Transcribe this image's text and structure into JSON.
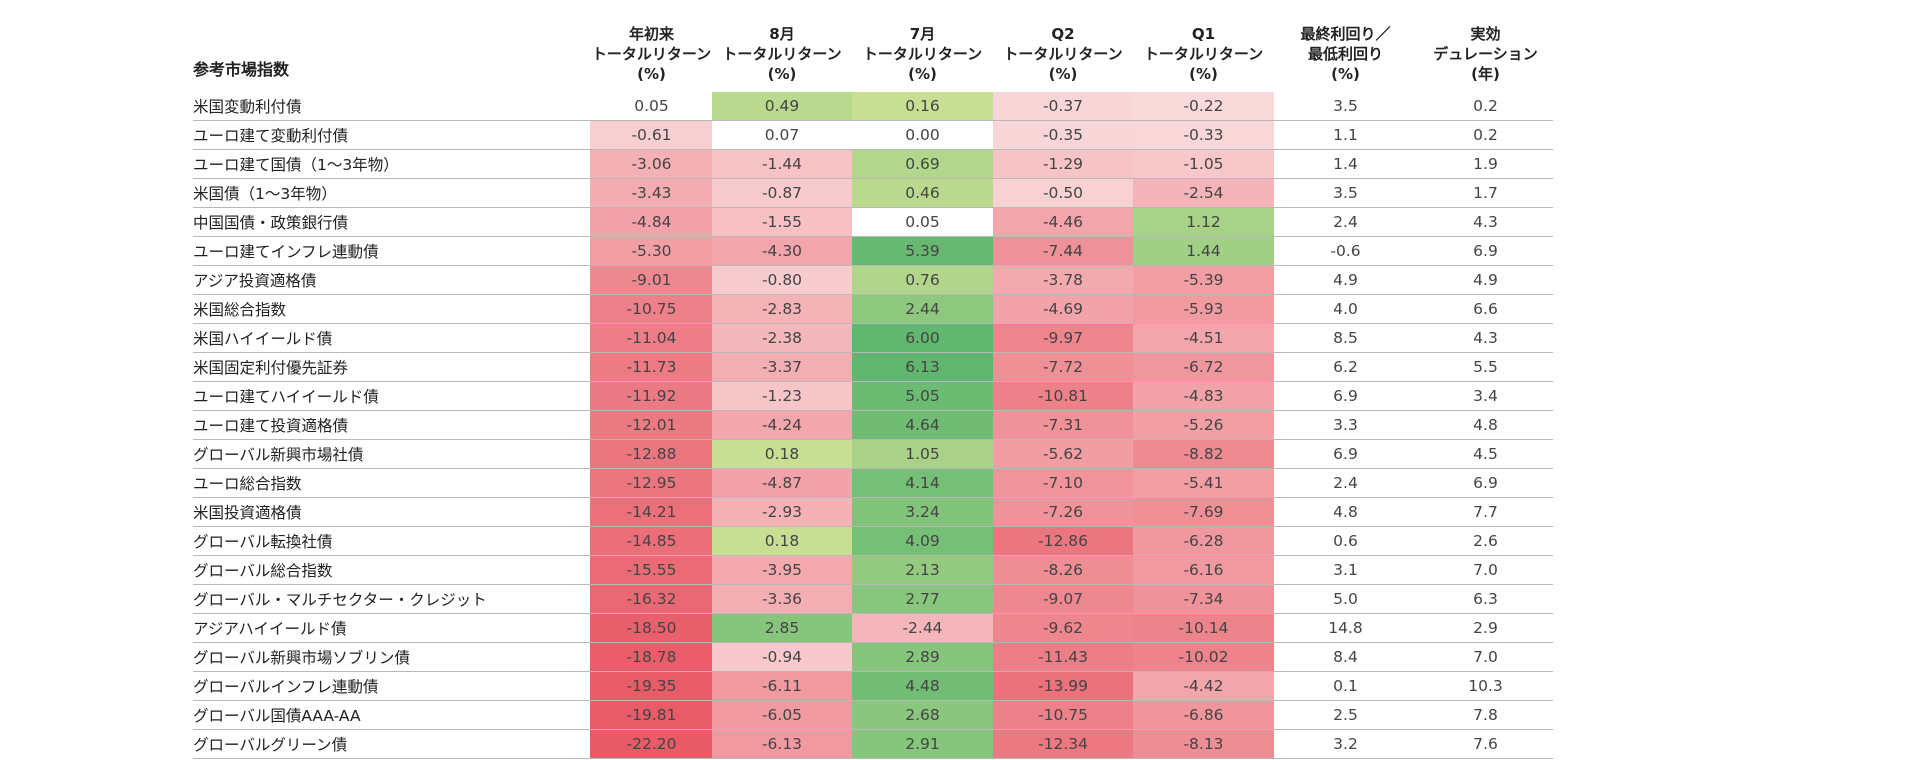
{
  "table": {
    "header": {
      "index_label": "参考市場指数",
      "columns": [
        [
          "年初来",
          "トータルリターン",
          "(%)"
        ],
        [
          "8月",
          "トータルリターン",
          "(%)"
        ],
        [
          "7月",
          "トータルリターン",
          "(%)"
        ],
        [
          "Q2",
          "トータルリターン",
          "(%)"
        ],
        [
          "Q1",
          "トータルリターン",
          "(%)"
        ],
        [
          "最終利回り／",
          "最低利回り",
          "(%)"
        ],
        [
          "実効",
          "デュレーション",
          "(年)"
        ]
      ]
    },
    "rows": [
      {
        "name": "米国変動利付債",
        "values": [
          "0.05",
          "0.49",
          "0.16",
          "-0.37",
          "-0.22",
          "3.5",
          "0.2"
        ]
      },
      {
        "name": "ユーロ建て変動利付債",
        "values": [
          "-0.61",
          "0.07",
          "0.00",
          "-0.35",
          "-0.33",
          "1.1",
          "0.2"
        ]
      },
      {
        "name": "ユーロ建て国債（1～3年物）",
        "values": [
          "-3.06",
          "-1.44",
          "0.69",
          "-1.29",
          "-1.05",
          "1.4",
          "1.9"
        ]
      },
      {
        "name": "米国債（1～3年物）",
        "values": [
          "-3.43",
          "-0.87",
          "0.46",
          "-0.50",
          "-2.54",
          "3.5",
          "1.7"
        ]
      },
      {
        "name": "中国国債・政策銀行債",
        "values": [
          "-4.84",
          "-1.55",
          "0.05",
          "-4.46",
          "1.12",
          "2.4",
          "4.3"
        ]
      },
      {
        "name": "ユーロ建てインフレ連動債",
        "values": [
          "-5.30",
          "-4.30",
          "5.39",
          "-7.44",
          "1.44",
          "-0.6",
          "6.9"
        ]
      },
      {
        "name": "アジア投資適格債",
        "values": [
          "-9.01",
          "-0.80",
          "0.76",
          "-3.78",
          "-5.39",
          "4.9",
          "4.9"
        ]
      },
      {
        "name": "米国総合指数",
        "values": [
          "-10.75",
          "-2.83",
          "2.44",
          "-4.69",
          "-5.93",
          "4.0",
          "6.6"
        ]
      },
      {
        "name": "米国ハイイールド債",
        "values": [
          "-11.04",
          "-2.38",
          "6.00",
          "-9.97",
          "-4.51",
          "8.5",
          "4.3"
        ]
      },
      {
        "name": "米国固定利付優先証券",
        "values": [
          "-11.73",
          "-3.37",
          "6.13",
          "-7.72",
          "-6.72",
          "6.2",
          "5.5"
        ]
      },
      {
        "name": "ユーロ建てハイイールド債",
        "values": [
          "-11.92",
          "-1.23",
          "5.05",
          "-10.81",
          "-4.83",
          "6.9",
          "3.4"
        ]
      },
      {
        "name": "ユーロ建て投資適格債",
        "values": [
          "-12.01",
          "-4.24",
          "4.64",
          "-7.31",
          "-5.26",
          "3.3",
          "4.8"
        ]
      },
      {
        "name": "グローバル新興市場社債",
        "values": [
          "-12.88",
          "0.18",
          "1.05",
          "-5.62",
          "-8.82",
          "6.9",
          "4.5"
        ]
      },
      {
        "name": "ユーロ総合指数",
        "values": [
          "-12.95",
          "-4.87",
          "4.14",
          "-7.10",
          "-5.41",
          "2.4",
          "6.9"
        ]
      },
      {
        "name": "米国投資適格債",
        "values": [
          "-14.21",
          "-2.93",
          "3.24",
          "-7.26",
          "-7.69",
          "4.8",
          "7.7"
        ]
      },
      {
        "name": "グローバル転換社債",
        "values": [
          "-14.85",
          "0.18",
          "4.09",
          "-12.86",
          "-6.28",
          "0.6",
          "2.6"
        ]
      },
      {
        "name": "グローバル総合指数",
        "values": [
          "-15.55",
          "-3.95",
          "2.13",
          "-8.26",
          "-6.16",
          "3.1",
          "7.0"
        ]
      },
      {
        "name": "グローバル・マルチセクター・クレジット",
        "values": [
          "-16.32",
          "-3.36",
          "2.77",
          "-9.07",
          "-7.34",
          "5.0",
          "6.3"
        ]
      },
      {
        "name": "アジアハイイールド債",
        "values": [
          "-18.50",
          "2.85",
          "-2.44",
          "-9.62",
          "-10.14",
          "14.8",
          "2.9"
        ]
      },
      {
        "name": "グローバル新興市場ソブリン債",
        "values": [
          "-18.78",
          "-0.94",
          "2.89",
          "-11.43",
          "-10.02",
          "8.4",
          "7.0"
        ]
      },
      {
        "name": "グローバルインフレ連動債",
        "values": [
          "-19.35",
          "-6.11",
          "4.48",
          "-13.99",
          "-4.42",
          "0.1",
          "10.3"
        ]
      },
      {
        "name": "グローバル国債AAA-AA",
        "values": [
          "-19.81",
          "-6.05",
          "2.68",
          "-10.75",
          "-6.86",
          "2.5",
          "7.8"
        ]
      },
      {
        "name": "グローバルグリーン債",
        "values": [
          "-22.20",
          "-6.13",
          "2.91",
          "-12.34",
          "-8.13",
          "3.2",
          "7.6"
        ]
      }
    ],
    "heat_colors": {
      "positive_light": "#dce69a",
      "positive_dark": "#5fb66e",
      "negative_light": "#fbe8e8",
      "negative_dark": "#e85a66",
      "neutral": "#ffffff"
    }
  }
}
